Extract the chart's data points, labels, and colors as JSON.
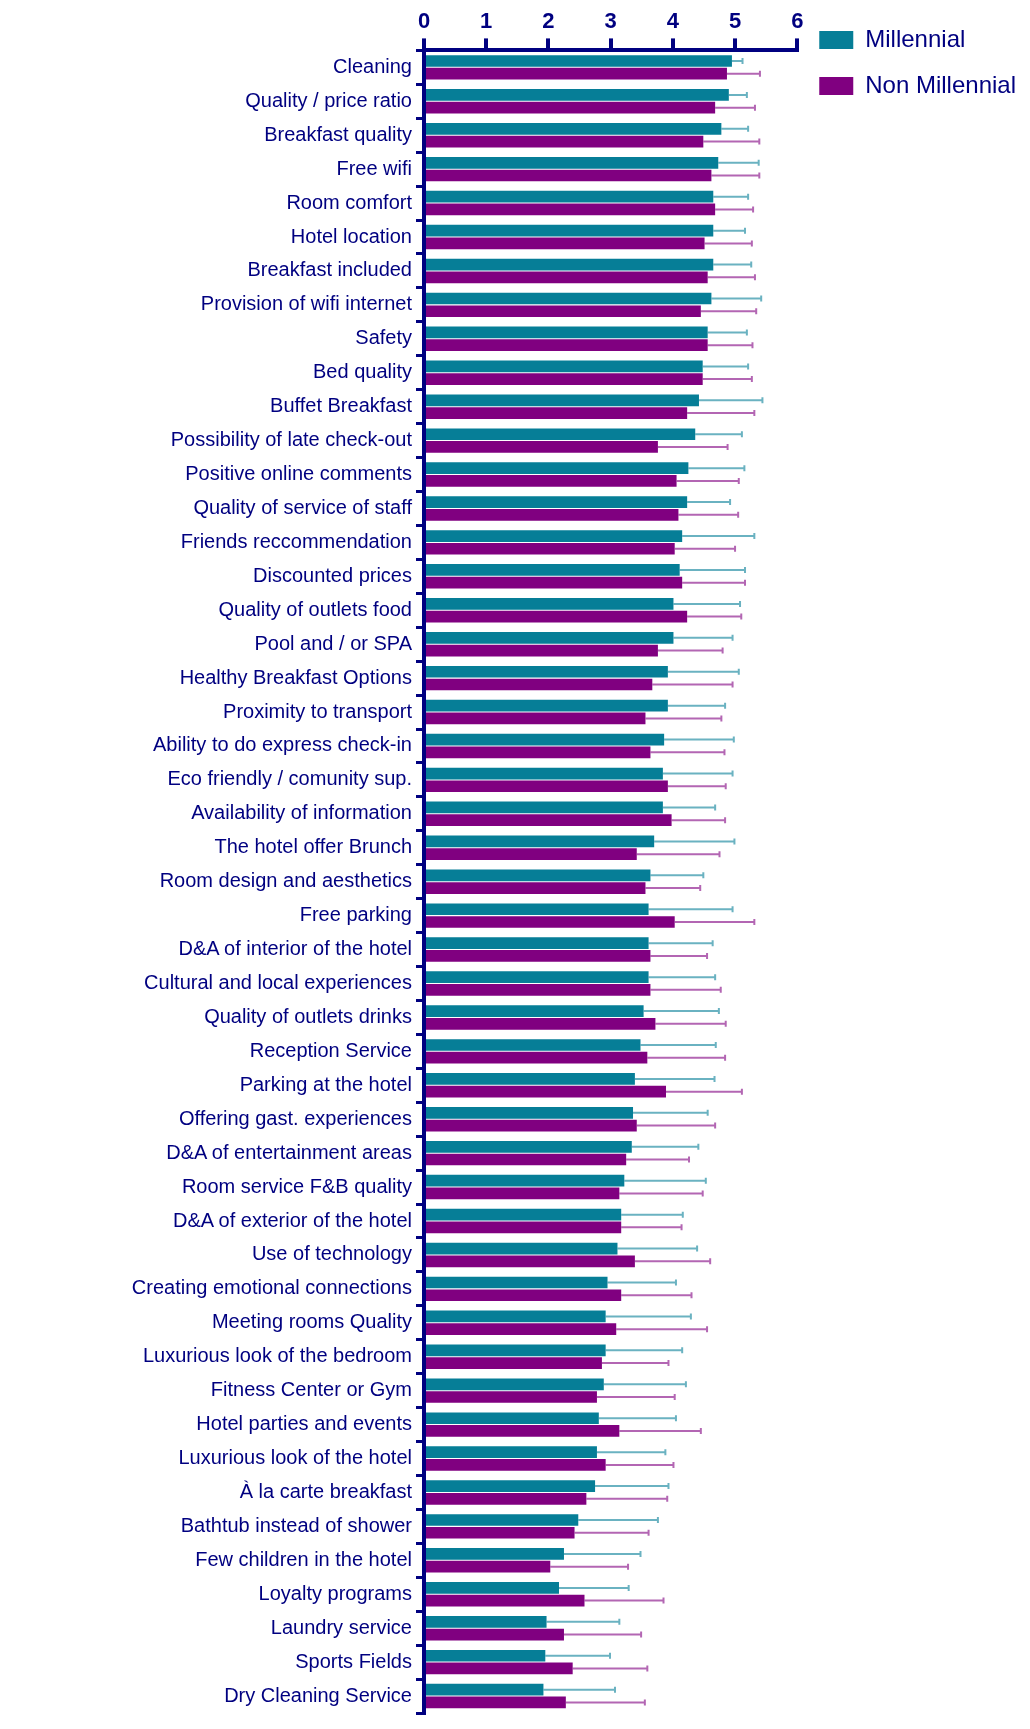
{
  "chart_data": {
    "type": "bar",
    "orientation": "horizontal",
    "categories": [
      "Cleaning",
      "Quality / price ratio",
      "Breakfast quality",
      "Free wifi",
      "Room comfort",
      "Hotel location",
      "Breakfast included",
      "Provision of wifi internet",
      "Safety",
      "Bed quality",
      "Buffet Breakfast",
      "Possibility of late check-out",
      "Positive online comments",
      "Quality of service of staff",
      "Friends reccommendation",
      "Discounted prices",
      "Quality of outlets food",
      "Pool and / or SPA",
      "Healthy Breakfast Options",
      "Proximity to transport",
      "Ability to do express check-in",
      "Eco friendly / comunity sup.",
      "Availability of information",
      "The hotel offer Brunch",
      "Room design and aesthetics",
      "Free parking",
      "D&A of interior of the hotel",
      "Cultural and local experiences",
      "Quality of outlets drinks",
      "Reception Service",
      "Parking at the hotel",
      "Offering gast. experiences",
      "D&A of entertainment areas",
      "Room service F&B quality",
      "D&A of exterior of the hotel",
      "Use of technology",
      "Creating emotional connections",
      "Meeting rooms Quality",
      "Luxurious look of the bedroom",
      "Fitness Center or Gym",
      "Hotel parties and events",
      "Luxurious look of the hotel",
      "À la carte breakfast",
      "Bathtub instead of shower",
      "Few children in the hotel",
      "Loyalty programs",
      "Laundry service",
      "Sports Fields",
      "Dry Cleaning Service"
    ],
    "series": [
      {
        "name": "Millennial",
        "color": "#067e97",
        "values": [
          4.95,
          4.9,
          4.78,
          4.73,
          4.65,
          4.65,
          4.65,
          4.62,
          4.56,
          4.48,
          4.42,
          4.36,
          4.25,
          4.23,
          4.15,
          4.11,
          4.01,
          4.01,
          3.92,
          3.92,
          3.86,
          3.84,
          3.84,
          3.7,
          3.64,
          3.61,
          3.61,
          3.61,
          3.53,
          3.48,
          3.39,
          3.36,
          3.34,
          3.22,
          3.17,
          3.11,
          2.95,
          2.92,
          2.92,
          2.89,
          2.81,
          2.78,
          2.75,
          2.48,
          2.25,
          2.17,
          1.97,
          1.95,
          1.92
        ],
        "errors": [
          0.17,
          0.29,
          0.43,
          0.65,
          0.56,
          0.51,
          0.61,
          0.8,
          0.63,
          0.73,
          1.02,
          0.75,
          0.9,
          0.69,
          1.16,
          1.05,
          1.07,
          0.95,
          1.14,
          0.92,
          1.12,
          1.12,
          0.84,
          1.29,
          0.85,
          1.35,
          1.03,
          1.07,
          1.21,
          1.21,
          1.28,
          1.2,
          1.07,
          1.31,
          0.99,
          1.28,
          1.1,
          1.37,
          1.23,
          1.32,
          1.24,
          1.1,
          1.18,
          1.28,
          1.23,
          1.12,
          1.17,
          1.04,
          1.15
        ]
      },
      {
        "name": "Non Millennial",
        "color": "#800080",
        "values": [
          4.87,
          4.68,
          4.49,
          4.62,
          4.68,
          4.51,
          4.56,
          4.45,
          4.56,
          4.48,
          4.23,
          3.76,
          4.06,
          4.09,
          4.03,
          4.15,
          4.23,
          3.76,
          3.67,
          3.56,
          3.64,
          3.92,
          3.98,
          3.42,
          3.56,
          4.03,
          3.64,
          3.64,
          3.72,
          3.59,
          3.89,
          3.42,
          3.25,
          3.14,
          3.17,
          3.39,
          3.17,
          3.09,
          2.86,
          2.78,
          3.14,
          2.92,
          2.61,
          2.42,
          2.03,
          2.58,
          2.25,
          2.39,
          2.28
        ],
        "errors": [
          0.53,
          0.64,
          0.9,
          0.77,
          0.61,
          0.76,
          0.76,
          0.89,
          0.72,
          0.79,
          1.08,
          1.12,
          1.0,
          0.96,
          0.97,
          1.01,
          0.87,
          1.04,
          1.29,
          1.22,
          1.19,
          0.93,
          0.86,
          1.33,
          0.88,
          1.28,
          0.91,
          1.13,
          1.13,
          1.25,
          1.22,
          1.26,
          1.01,
          1.34,
          0.97,
          1.21,
          1.13,
          1.46,
          1.07,
          1.25,
          1.31,
          1.09,
          1.3,
          1.19,
          1.25,
          1.27,
          1.24,
          1.2,
          1.27
        ]
      }
    ],
    "xlim": [
      0,
      6
    ],
    "xticks": [
      0,
      1,
      2,
      3,
      4,
      5,
      6
    ],
    "grid": false,
    "legend": "top right"
  }
}
